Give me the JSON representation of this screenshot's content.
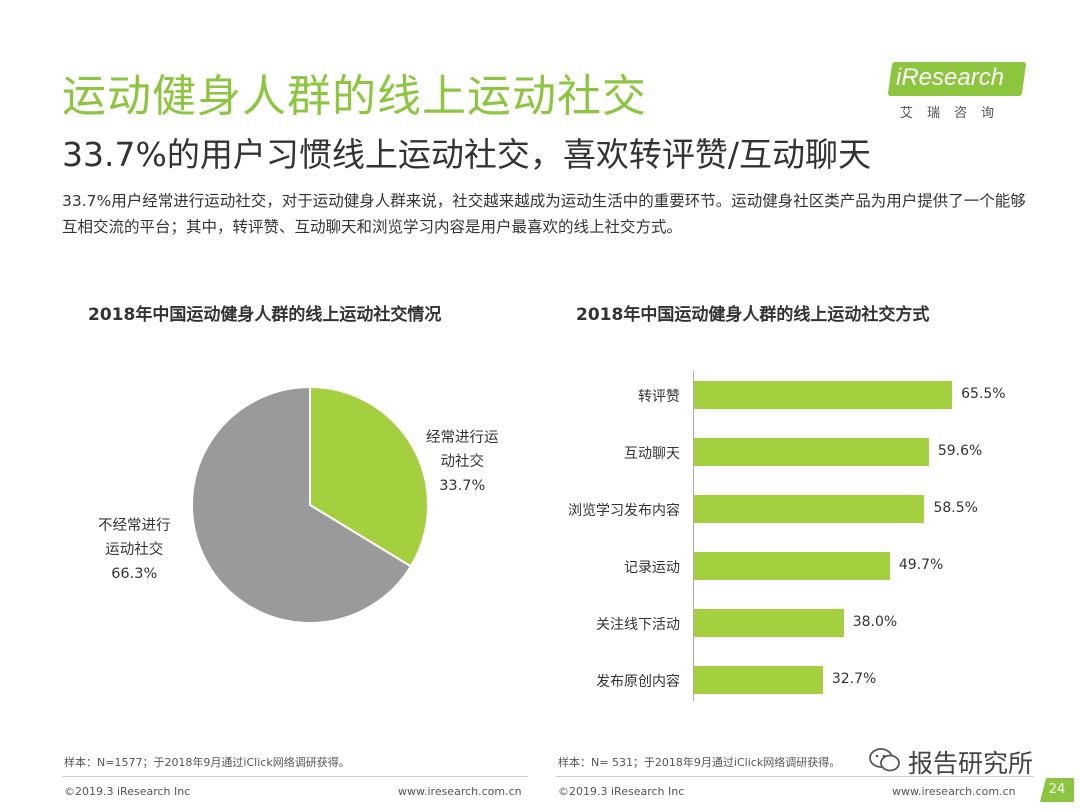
{
  "header": {
    "title": "运动健身人群的线上运动社交",
    "subtitle": "33.7%的用户习惯线上运动社交，喜欢转评赞/互动聊天",
    "summary": "33.7%用户经常进行运动社交，对于运动健身人群来说，社交越来越成为运动生活中的重要环节。运动健身社区类产品为用户提供了一个能够互相交流的平台；其中，转评赞、互动聊天和浏览学习内容是用户最喜欢的线上社交方式。"
  },
  "logo": {
    "text": "iResearch",
    "cn": "艾瑞咨询"
  },
  "colors": {
    "accent": "#8cc63f",
    "bar": "#a4cf3e",
    "pie_gray": "#9a9a9a"
  },
  "chart_data": [
    {
      "type": "pie",
      "title": "2018年中国运动健身人群的线上运动社交情况",
      "slices": [
        {
          "label_line1": "经常进行运",
          "label_line2": "动社交",
          "value": 33.7,
          "value_label": "33.7%",
          "color": "#a4cf3e"
        },
        {
          "label_line1": "不经常进行",
          "label_line2": "运动社交",
          "value": 66.3,
          "value_label": "66.3%",
          "color": "#9a9a9a"
        }
      ],
      "note": "样本：N=1577；于2018年9月通过iClick网络调研获得。"
    },
    {
      "type": "bar",
      "orientation": "horizontal",
      "title": "2018年中国运动健身人群的线上运动社交方式",
      "categories": [
        "转评赞",
        "互动聊天",
        "浏览学习发布内容",
        "记录运动",
        "关注线下活动",
        "发布原创内容"
      ],
      "values": [
        65.5,
        59.6,
        58.5,
        49.7,
        38.0,
        32.7
      ],
      "value_labels": [
        "65.5%",
        "59.6%",
        "58.5%",
        "49.7%",
        "38.0%",
        "32.7%"
      ],
      "xlim": [
        0,
        100
      ],
      "note": "样本：N= 531；于2018年9月通过iClick网络调研获得。"
    }
  ],
  "footer": {
    "copyright_left": "©2019.3  iResearch Inc",
    "url_left": "www.iresearch.com.cn",
    "copyright_right": "©2019.3  iResearch Inc",
    "url_right": "www.iresearch.com.cn",
    "watermark": "报告研究所",
    "page_number": "24"
  }
}
